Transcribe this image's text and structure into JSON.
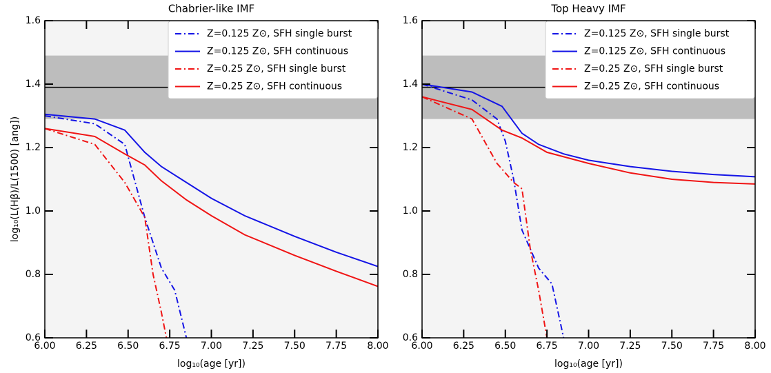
{
  "chart_data": [
    {
      "type": "line",
      "title": "Chabrier-like IMF",
      "xlabel": "log₁₀(age [yr])",
      "ylabel": "log₁₀(L(Hβ)/L(1500) [ang])",
      "xlim": [
        6,
        8
      ],
      "ylim": [
        0.6,
        1.6
      ],
      "xticks": [
        {
          "value": 6,
          "label": "6.00"
        },
        {
          "value": 6.25,
          "label": "6.25"
        },
        {
          "value": 6.5,
          "label": "6.50"
        },
        {
          "value": 6.75,
          "label": "6.75"
        },
        {
          "value": 7,
          "label": "7.00"
        },
        {
          "value": 7.25,
          "label": "7.25"
        },
        {
          "value": 7.5,
          "label": "7.50"
        },
        {
          "value": 7.75,
          "label": "7.75"
        },
        {
          "value": 8,
          "label": "8.00"
        }
      ],
      "yticks": [
        0.6,
        0.8,
        {
          "value": 1,
          "label": "1.0"
        },
        1.2,
        1.4,
        1.6
      ],
      "band": [
        1.29,
        1.49
      ],
      "hline": 1.39,
      "legend": "upper right",
      "series": [
        {
          "name": "Z=0.125 Z⊙, SFH single burst",
          "color": "#1414e6",
          "dash": "dashdot",
          "x": [
            6.0,
            6.3,
            6.48,
            6.6,
            6.7,
            6.78,
            6.85
          ],
          "values": [
            1.3,
            1.275,
            1.21,
            0.98,
            0.82,
            0.75,
            0.6
          ]
        },
        {
          "name": "Z=0.125 Z⊙, SFH continuous",
          "color": "#1414e6",
          "dash": "solid",
          "x": [
            6.0,
            6.3,
            6.48,
            6.6,
            6.7,
            6.85,
            7.0,
            7.2,
            7.5,
            7.75,
            8.0
          ],
          "values": [
            1.305,
            1.29,
            1.255,
            1.185,
            1.14,
            1.09,
            1.04,
            0.985,
            0.92,
            0.87,
            0.825
          ]
        },
        {
          "name": "Z=0.25 Z⊙, SFH single burst",
          "color": "#f01414",
          "dash": "dashdot",
          "x": [
            6.0,
            6.3,
            6.48,
            6.6,
            6.65,
            6.7,
            6.73
          ],
          "values": [
            1.26,
            1.21,
            1.09,
            0.98,
            0.8,
            0.68,
            0.6
          ]
        },
        {
          "name": "Z=0.25 Z⊙, SFH continuous",
          "color": "#f01414",
          "dash": "solid",
          "x": [
            6.0,
            6.3,
            6.48,
            6.6,
            6.7,
            6.85,
            7.0,
            7.2,
            7.5,
            7.75,
            8.0
          ],
          "values": [
            1.26,
            1.235,
            1.18,
            1.145,
            1.095,
            1.035,
            0.985,
            0.925,
            0.86,
            0.81,
            0.762
          ]
        }
      ]
    },
    {
      "type": "line",
      "title": "Top Heavy IMF",
      "xlabel": "log₁₀(age [yr])",
      "xlim": [
        6,
        8
      ],
      "ylim": [
        0.6,
        1.6
      ],
      "xticks": [
        {
          "value": 6,
          "label": "6.00"
        },
        {
          "value": 6.25,
          "label": "6.25"
        },
        {
          "value": 6.5,
          "label": "6.50"
        },
        {
          "value": 6.75,
          "label": "6.75"
        },
        {
          "value": 7,
          "label": "7.00"
        },
        {
          "value": 7.25,
          "label": "7.25"
        },
        {
          "value": 7.5,
          "label": "7.50"
        },
        {
          "value": 7.75,
          "label": "7.75"
        },
        {
          "value": 8,
          "label": "8.00"
        }
      ],
      "yticks": [
        0.6,
        0.8,
        {
          "value": 1,
          "label": "1.0"
        },
        1.2,
        1.4,
        1.6
      ],
      "band": [
        1.29,
        1.49
      ],
      "hline": 1.39,
      "legend": "upper right",
      "series": [
        {
          "name": "Z=0.125 Z⊙, SFH single burst",
          "color": "#1414e6",
          "dash": "dashdot",
          "x": [
            6.0,
            6.3,
            6.45,
            6.5,
            6.55,
            6.6,
            6.65,
            6.7,
            6.78,
            6.85
          ],
          "values": [
            1.4,
            1.35,
            1.29,
            1.22,
            1.1,
            0.94,
            0.88,
            0.82,
            0.77,
            0.6
          ]
        },
        {
          "name": "Z=0.125 Z⊙, SFH continuous",
          "color": "#1414e6",
          "dash": "solid",
          "x": [
            6.0,
            6.3,
            6.48,
            6.6,
            6.7,
            6.85,
            7.0,
            7.25,
            7.5,
            7.75,
            8.0
          ],
          "values": [
            1.4,
            1.375,
            1.33,
            1.245,
            1.21,
            1.18,
            1.16,
            1.14,
            1.125,
            1.115,
            1.108
          ]
        },
        {
          "name": "Z=0.25 Z⊙, SFH single burst",
          "color": "#f01414",
          "dash": "dashdot",
          "x": [
            6.0,
            6.3,
            6.45,
            6.5,
            6.55,
            6.6,
            6.65,
            6.7,
            6.75
          ],
          "values": [
            1.36,
            1.29,
            1.15,
            1.12,
            1.09,
            1.07,
            0.88,
            0.75,
            0.6
          ]
        },
        {
          "name": "Z=0.25 Z⊙, SFH continuous",
          "color": "#f01414",
          "dash": "solid",
          "x": [
            6.0,
            6.3,
            6.48,
            6.6,
            6.75,
            7.0,
            7.25,
            7.5,
            7.75,
            8.0
          ],
          "values": [
            1.36,
            1.32,
            1.255,
            1.23,
            1.185,
            1.15,
            1.12,
            1.1,
            1.09,
            1.085
          ]
        }
      ]
    }
  ]
}
